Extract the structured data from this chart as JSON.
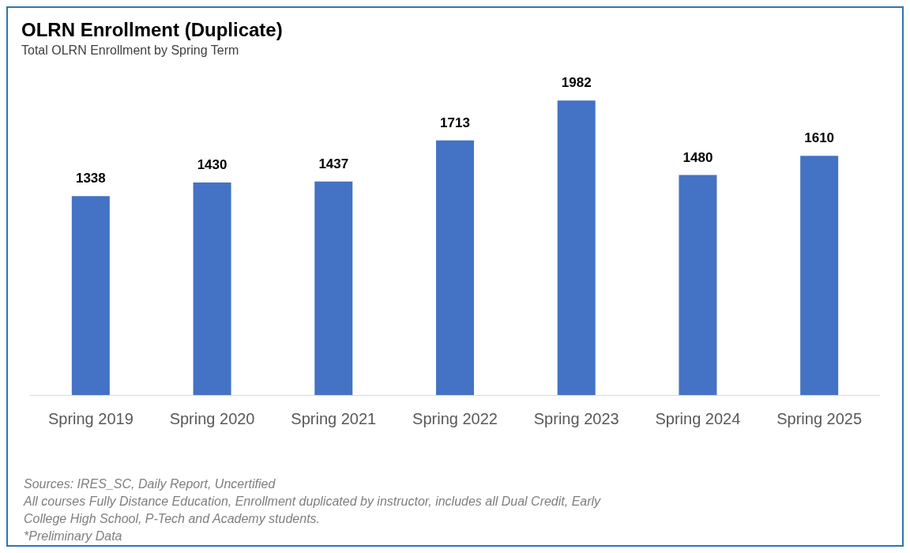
{
  "chart_data": {
    "type": "bar",
    "title": "OLRN Enrollment (Duplicate)",
    "subtitle": "Total OLRN Enrollment by Spring Term",
    "categories": [
      "Spring 2019",
      "Spring 2020",
      "Spring 2021",
      "Spring 2022",
      "Spring 2023",
      "Spring 2024",
      "Spring 2025"
    ],
    "values": [
      1338,
      1430,
      1437,
      1713,
      1982,
      1480,
      1610
    ],
    "color": "#4472c4",
    "data_labels": true,
    "grid": false,
    "annotations": [
      "Sources: IRES_SC, Daily Report, Uncertified",
      "All courses Fully Distance Education, Enrollment duplicated by instructor, includes all Dual Credit, Early",
      "College High School, P-Tech and Academy students.",
      "*Preliminary Data"
    ]
  }
}
